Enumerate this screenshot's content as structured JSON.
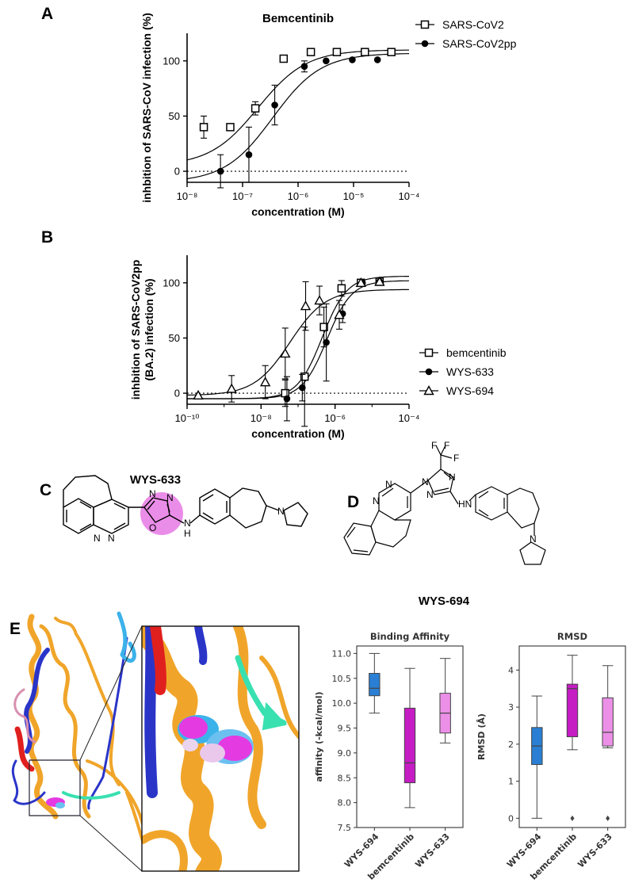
{
  "panel_labels": {
    "A": "A",
    "B": "B",
    "C": "C",
    "D": "D",
    "E": "E"
  },
  "compounds": {
    "c_name": "WYS-633",
    "d_name": "WYS-694",
    "atoms": {
      "N": "N",
      "O": "O",
      "H": "H",
      "F": "F",
      "HN": "HN",
      "NH": "NH"
    }
  },
  "colors": {
    "series_line": "#000000",
    "highlight_circle": "#ea8de8",
    "protein_orange": "#f0a52a",
    "protein_blue": "#2a35c8",
    "protein_red": "#e0201e",
    "protein_cyan": "#3cb2ea",
    "protein_teal": "#39e0b0",
    "ligand_magenta": "#e43ae2",
    "box_wys694": "#2a7fd4",
    "box_bemcentinib": "#c51cc4",
    "box_wys633": "#ec8fe7"
  },
  "chart_data": [
    {
      "type": "scatter",
      "title": "Bemcentinib",
      "xlabel": "concentration (M)",
      "ylabel": "inhbition of SARS-CoV infection (%)",
      "xscale": "log",
      "xlim": [
        1e-08,
        0.0001
      ],
      "ylim": [
        -10,
        125
      ],
      "xticks": [
        "10⁻⁸",
        "10⁻⁷",
        "10⁻⁶",
        "10⁻⁵",
        "10⁻⁴"
      ],
      "yticks": [
        0,
        50,
        100
      ],
      "legend_position": "top-right",
      "series": [
        {
          "name": "SARS-CoV2",
          "marker": "open-square",
          "x": [
            2e-08,
            6e-08,
            1.7e-07,
            5.5e-07,
            1.7e-06,
            5e-06,
            1.6e-05,
            4.8e-05
          ],
          "y": [
            40,
            40,
            57,
            102,
            108,
            108,
            108,
            108
          ],
          "err": [
            10,
            0,
            6,
            0,
            0,
            0,
            0,
            0
          ]
        },
        {
          "name": "SARS-CoV2pp",
          "marker": "filled-circle",
          "x": [
            4e-08,
            1.3e-07,
            3.8e-07,
            1.3e-06,
            3.2e-06,
            9.5e-06,
            2.7e-05
          ],
          "y": [
            0,
            15,
            60,
            95,
            100,
            101,
            101
          ],
          "err": [
            15,
            25,
            18,
            5,
            0,
            0,
            0
          ]
        }
      ],
      "fits": [
        {
          "series": "SARS-CoV2",
          "bottom": 5,
          "top": 110,
          "ic50": 1.9e-07,
          "hill": 1.0
        },
        {
          "series": "SARS-CoV2pp",
          "bottom": -10,
          "top": 107,
          "ic50": 3.5e-07,
          "hill": 1.0
        }
      ]
    },
    {
      "type": "scatter",
      "title": "",
      "xlabel": "concentration (M)",
      "ylabel_lines": [
        "inhbition of SARS-CoV2pp",
        "(BA.2) infection (%)"
      ],
      "xscale": "log",
      "xlim": [
        1e-10,
        0.0001
      ],
      "ylim": [
        -10,
        125
      ],
      "xticks": [
        "10⁻¹⁰",
        "10⁻⁸",
        "10⁻⁶",
        "10⁻⁴"
      ],
      "yticks": [
        0,
        50,
        100
      ],
      "legend_position": "right",
      "series": [
        {
          "name": "bemcentinib",
          "marker": "open-square",
          "x": [
            4.5e-08,
            1.5e-07,
            5e-07,
            1.5e-06,
            5e-06,
            1.6e-05
          ],
          "y": [
            0,
            15,
            60,
            95,
            100,
            101
          ],
          "err": [
            12,
            45,
            18,
            7,
            0,
            0
          ]
        },
        {
          "name": "WYS-633",
          "marker": "filled-circle",
          "x": [
            5e-08,
            1.3e-07,
            5.8e-07,
            1.6e-06,
            5.5e-06,
            1.6e-05
          ],
          "y": [
            -5,
            5,
            46,
            72,
            100,
            101
          ],
          "err": [
            20,
            12,
            35,
            8,
            0,
            0
          ]
        },
        {
          "name": "WYS-694",
          "marker": "open-triangle",
          "x": [
            2e-10,
            1.6e-09,
            1.3e-08,
            4.5e-08,
            1.6e-07,
            3.8e-07,
            1.3e-06,
            5e-06,
            1.6e-05
          ],
          "y": [
            -2,
            4,
            10,
            36,
            79,
            84,
            71,
            100,
            101
          ],
          "err": [
            0,
            12,
            15,
            23,
            22,
            13,
            13,
            0,
            0
          ]
        }
      ],
      "fits": [
        {
          "series": "bemcentinib",
          "bottom": -5,
          "top": 106,
          "ic50": 4.5e-07,
          "hill": 1.3
        },
        {
          "series": "WYS-633",
          "bottom": -5,
          "top": 102,
          "ic50": 6e-07,
          "hill": 1.3
        },
        {
          "series": "WYS-694",
          "bottom": -2,
          "top": 94,
          "ic50": 6e-08,
          "hill": 0.9
        }
      ]
    },
    {
      "type": "box",
      "title": "Binding Affinity",
      "ylabel": "affinity (-kcal/mol)",
      "ylim": [
        7.5,
        11.15
      ],
      "yticks": [
        "7.5",
        "8.0",
        "8.5",
        "9.0",
        "9.5",
        "10.0",
        "10.5",
        "11.0"
      ],
      "categories": [
        "WYS-694",
        "bemcentinib",
        "WYS-633"
      ],
      "boxes": [
        {
          "min": 9.8,
          "q1": 10.15,
          "median": 10.3,
          "q3": 10.6,
          "max": 11.0,
          "outliers": []
        },
        {
          "min": 7.9,
          "q1": 8.4,
          "median": 8.8,
          "q3": 9.9,
          "max": 10.7,
          "outliers": []
        },
        {
          "min": 9.2,
          "q1": 9.4,
          "median": 9.8,
          "q3": 10.2,
          "max": 10.9,
          "outliers": []
        }
      ]
    },
    {
      "type": "box",
      "title": "RMSD",
      "ylabel": "RMSD (Å)",
      "ylim": [
        -0.25,
        4.65
      ],
      "yticks": [
        "0",
        "1",
        "2",
        "3",
        "4"
      ],
      "categories": [
        "WYS-694",
        "bemcentinib",
        "WYS-633"
      ],
      "boxes": [
        {
          "min": 0.0,
          "q1": 1.45,
          "median": 1.95,
          "q3": 2.45,
          "max": 3.3,
          "outliers": []
        },
        {
          "min": 1.85,
          "q1": 2.2,
          "median": 3.5,
          "q3": 3.62,
          "max": 4.4,
          "outliers": [
            0.0
          ]
        },
        {
          "min": 1.9,
          "q1": 1.95,
          "median": 2.32,
          "q3": 3.25,
          "max": 4.12,
          "outliers": [
            0.0
          ]
        }
      ]
    }
  ]
}
